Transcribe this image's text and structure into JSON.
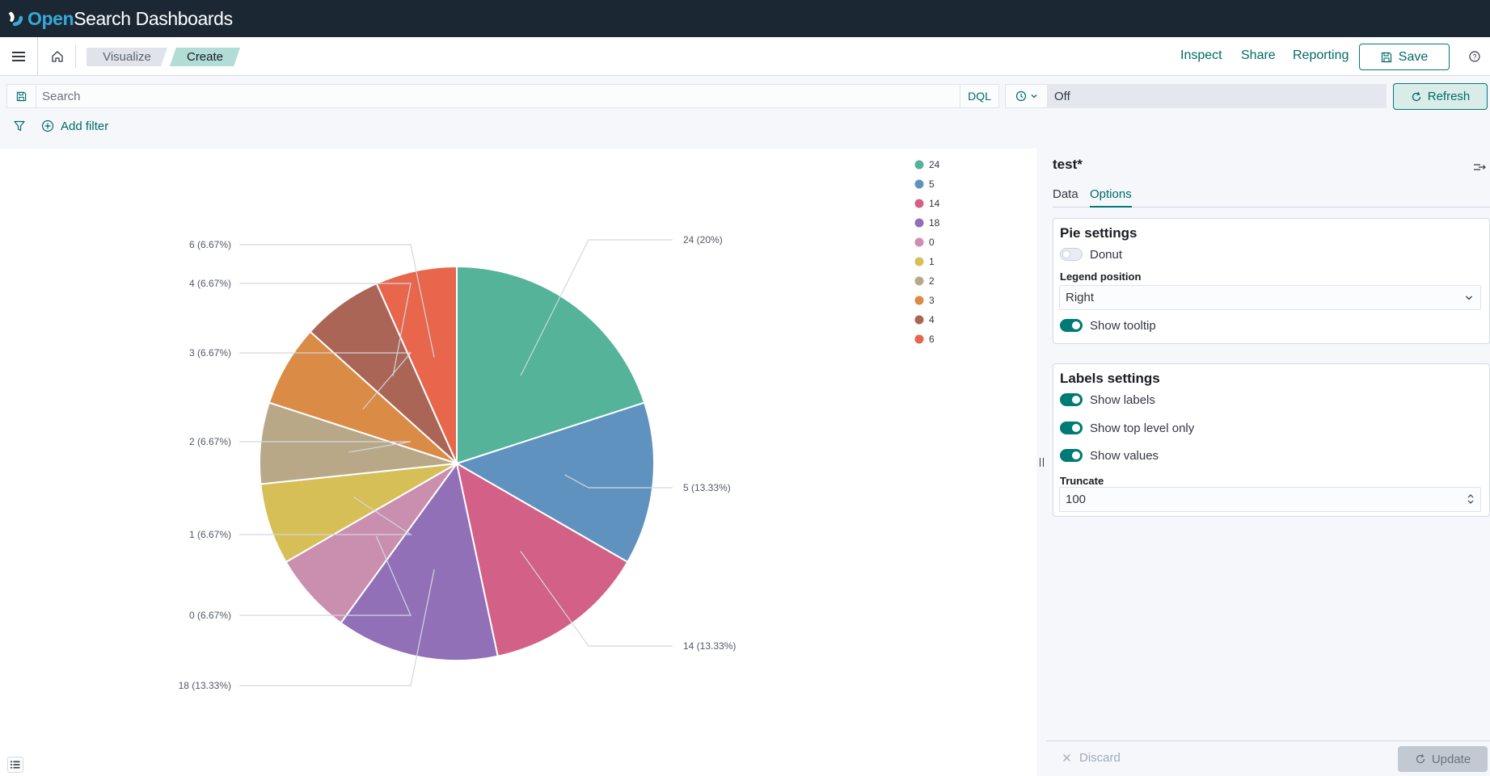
{
  "header": {
    "logo_open": "Open",
    "logo_rest": "Search Dashboards"
  },
  "nav": {
    "breadcrumbs": [
      "Visualize",
      "Create"
    ],
    "inspect_label": "Inspect",
    "share_label": "Share",
    "reporting_label": "Reporting",
    "save_label": "Save"
  },
  "query": {
    "search_placeholder": "Search",
    "language_label": "DQL",
    "date_value": "Off",
    "refresh_label": "Refresh",
    "add_filter_label": "Add filter"
  },
  "sidebar": {
    "title": "test*",
    "tabs": [
      {
        "label": "Data",
        "active": false
      },
      {
        "label": "Options",
        "active": true
      }
    ],
    "pie_settings": {
      "title": "Pie settings",
      "donut_label": "Donut",
      "donut_enabled": false,
      "legend_position_label": "Legend position",
      "legend_position_value": "Right",
      "show_tooltip_label": "Show tooltip",
      "show_tooltip_enabled": true
    },
    "labels_settings": {
      "title": "Labels settings",
      "show_labels_label": "Show labels",
      "show_labels_enabled": true,
      "show_top_level_label": "Show top level only",
      "show_top_level_enabled": true,
      "show_values_label": "Show values",
      "show_values_enabled": true,
      "truncate_label": "Truncate",
      "truncate_value": "100"
    },
    "discard_label": "Discard",
    "update_label": "Update"
  },
  "chart_data": {
    "type": "pie",
    "slices": [
      {
        "name": "24",
        "value": 3,
        "label": "24 (20%)",
        "color": "#54b399"
      },
      {
        "name": "5",
        "value": 2,
        "label": "5 (13.33%)",
        "color": "#6092c0"
      },
      {
        "name": "14",
        "value": 2,
        "label": "14 (13.33%)",
        "color": "#d36086"
      },
      {
        "name": "18",
        "value": 2,
        "label": "18 (13.33%)",
        "color": "#9170b8"
      },
      {
        "name": "0",
        "value": 1,
        "label": "0 (6.67%)",
        "color": "#ca8eae"
      },
      {
        "name": "1",
        "value": 1,
        "label": "1 (6.67%)",
        "color": "#d6bf57"
      },
      {
        "name": "2",
        "value": 1,
        "label": "2 (6.67%)",
        "color": "#b9a888"
      },
      {
        "name": "3",
        "value": 1,
        "label": "3 (6.67%)",
        "color": "#da8b45"
      },
      {
        "name": "4",
        "value": 1,
        "label": "4 (6.67%)",
        "color": "#aa6556"
      },
      {
        "name": "6",
        "value": 1,
        "label": "6 (6.67%)",
        "color": "#e7664c"
      }
    ],
    "legend_placement": "top-right"
  }
}
